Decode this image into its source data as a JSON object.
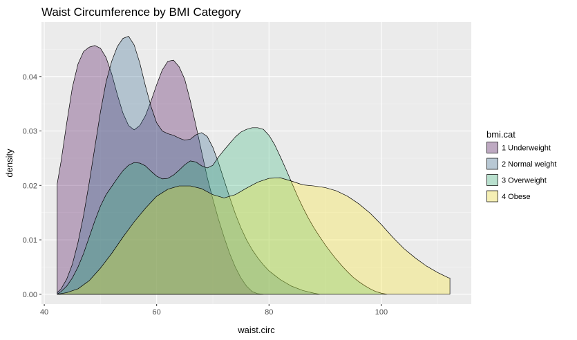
{
  "chart_data": {
    "type": "area",
    "title": "Waist Circumference by BMI Category",
    "xlabel": "waist.circ",
    "ylabel": "density",
    "xlim": [
      39.5,
      116
    ],
    "ylim": [
      -0.0018,
      0.05
    ],
    "xticks": [
      40,
      60,
      80,
      100
    ],
    "yticks": [
      0.0,
      0.01,
      0.02,
      0.03,
      0.04
    ],
    "ytick_labels": [
      "0.00",
      "0.01",
      "0.02",
      "0.03",
      "0.04"
    ],
    "grid": true,
    "legend_title": "bmi.cat",
    "legend_position": "right",
    "series": [
      {
        "name": "1 Underweight",
        "color": "#440154",
        "points": [
          [
            42.3,
            0.0203
          ],
          [
            43,
            0.0245
          ],
          [
            44,
            0.0315
          ],
          [
            45,
            0.038
          ],
          [
            46,
            0.0423
          ],
          [
            47,
            0.0446
          ],
          [
            48,
            0.0454
          ],
          [
            49,
            0.0457
          ],
          [
            50,
            0.0452
          ],
          [
            51,
            0.0435
          ],
          [
            52,
            0.0405
          ],
          [
            53,
            0.0367
          ],
          [
            54,
            0.0333
          ],
          [
            55,
            0.031
          ],
          [
            56,
            0.0302
          ],
          [
            57,
            0.031
          ],
          [
            58,
            0.0328
          ],
          [
            59,
            0.0355
          ],
          [
            60,
            0.0385
          ],
          [
            61,
            0.0412
          ],
          [
            62,
            0.0428
          ],
          [
            63,
            0.043
          ],
          [
            64,
            0.0418
          ],
          [
            65,
            0.0395
          ],
          [
            66,
            0.0355
          ],
          [
            67,
            0.031
          ],
          [
            68,
            0.0262
          ],
          [
            69,
            0.0215
          ],
          [
            70,
            0.0175
          ],
          [
            71,
            0.0138
          ],
          [
            72,
            0.0105
          ],
          [
            73,
            0.0075
          ],
          [
            74,
            0.005
          ],
          [
            75,
            0.003
          ],
          [
            76,
            0.0015
          ],
          [
            77,
            0.0005
          ],
          [
            78,
            0.0001
          ],
          [
            79,
            0.0
          ]
        ]
      },
      {
        "name": "2 Normal weight",
        "color": "#31688E",
        "points": [
          [
            42.3,
            0.0003
          ],
          [
            43,
            0.001
          ],
          [
            44,
            0.0028
          ],
          [
            45,
            0.0055
          ],
          [
            46,
            0.0095
          ],
          [
            47,
            0.0145
          ],
          [
            48,
            0.0205
          ],
          [
            49,
            0.027
          ],
          [
            50,
            0.0335
          ],
          [
            51,
            0.039
          ],
          [
            52,
            0.0428
          ],
          [
            53,
            0.0455
          ],
          [
            54,
            0.047
          ],
          [
            55,
            0.0474
          ],
          [
            56,
            0.0458
          ],
          [
            57,
            0.0425
          ],
          [
            58,
            0.0383
          ],
          [
            59,
            0.0345
          ],
          [
            60,
            0.0315
          ],
          [
            61,
            0.03
          ],
          [
            62,
            0.0295
          ],
          [
            63,
            0.0292
          ],
          [
            64,
            0.0287
          ],
          [
            65,
            0.0283
          ],
          [
            66,
            0.0285
          ],
          [
            67,
            0.0293
          ],
          [
            68,
            0.0297
          ],
          [
            69,
            0.029
          ],
          [
            70,
            0.027
          ],
          [
            71,
            0.0242
          ],
          [
            72,
            0.021
          ],
          [
            73,
            0.0178
          ],
          [
            74,
            0.0148
          ],
          [
            75,
            0.0122
          ],
          [
            76,
            0.01
          ],
          [
            77,
            0.0082
          ],
          [
            78,
            0.0067
          ],
          [
            79,
            0.0054
          ],
          [
            80,
            0.0043
          ],
          [
            82,
            0.0027
          ],
          [
            84,
            0.0015
          ],
          [
            86,
            0.0007
          ],
          [
            88,
            0.0002
          ],
          [
            89,
            0.0
          ]
        ]
      },
      {
        "name": "3 Overweight",
        "color": "#35B779",
        "points": [
          [
            42.3,
            0.0
          ],
          [
            43,
            0.0005
          ],
          [
            44,
            0.0015
          ],
          [
            45,
            0.003
          ],
          [
            46,
            0.005
          ],
          [
            47,
            0.0075
          ],
          [
            48,
            0.0105
          ],
          [
            49,
            0.0135
          ],
          [
            50,
            0.0162
          ],
          [
            51,
            0.0183
          ],
          [
            52,
            0.0198
          ],
          [
            53,
            0.0213
          ],
          [
            54,
            0.0227
          ],
          [
            55,
            0.0237
          ],
          [
            56,
            0.0242
          ],
          [
            57,
            0.0241
          ],
          [
            58,
            0.0236
          ],
          [
            59,
            0.0226
          ],
          [
            60,
            0.0217
          ],
          [
            61,
            0.0212
          ],
          [
            62,
            0.0213
          ],
          [
            63,
            0.0219
          ],
          [
            64,
            0.0228
          ],
          [
            65,
            0.0238
          ],
          [
            66,
            0.0245
          ],
          [
            67,
            0.0243
          ],
          [
            68,
            0.0236
          ],
          [
            69,
            0.0232
          ],
          [
            70,
            0.0237
          ],
          [
            71,
            0.0252
          ],
          [
            72,
            0.0265
          ],
          [
            73,
            0.0277
          ],
          [
            74,
            0.0289
          ],
          [
            75,
            0.0298
          ],
          [
            76,
            0.0303
          ],
          [
            77,
            0.0306
          ],
          [
            78,
            0.0306
          ],
          [
            79,
            0.0303
          ],
          [
            80,
            0.0292
          ],
          [
            81,
            0.0275
          ],
          [
            82,
            0.0253
          ],
          [
            83,
            0.023
          ],
          [
            84,
            0.0206
          ],
          [
            85,
            0.0182
          ],
          [
            86,
            0.016
          ],
          [
            87,
            0.014
          ],
          [
            88,
            0.0122
          ],
          [
            89,
            0.0106
          ],
          [
            90,
            0.0091
          ],
          [
            91,
            0.0077
          ],
          [
            92,
            0.0064
          ],
          [
            93,
            0.0052
          ],
          [
            94,
            0.0041
          ],
          [
            95,
            0.0031
          ],
          [
            96,
            0.0023
          ],
          [
            97,
            0.0016
          ],
          [
            98,
            0.001
          ],
          [
            99,
            0.0005
          ],
          [
            100,
            0.0002
          ],
          [
            101,
            0.0
          ]
        ]
      },
      {
        "name": "4 Obese",
        "color": "#FDE725",
        "points": [
          [
            42.3,
            0.0
          ],
          [
            44,
            0.0003
          ],
          [
            46,
            0.001
          ],
          [
            48,
            0.0025
          ],
          [
            50,
            0.0048
          ],
          [
            52,
            0.0075
          ],
          [
            54,
            0.0105
          ],
          [
            56,
            0.0133
          ],
          [
            58,
            0.0158
          ],
          [
            60,
            0.018
          ],
          [
            62,
            0.0193
          ],
          [
            64,
            0.0199
          ],
          [
            66,
            0.0199
          ],
          [
            68,
            0.0194
          ],
          [
            70,
            0.0183
          ],
          [
            72,
            0.0177
          ],
          [
            74,
            0.0183
          ],
          [
            76,
            0.0195
          ],
          [
            78,
            0.0206
          ],
          [
            80,
            0.0213
          ],
          [
            82,
            0.0214
          ],
          [
            84,
            0.0208
          ],
          [
            86,
            0.0201
          ],
          [
            88,
            0.0199
          ],
          [
            90,
            0.0196
          ],
          [
            92,
            0.019
          ],
          [
            94,
            0.018
          ],
          [
            96,
            0.0166
          ],
          [
            98,
            0.0149
          ],
          [
            100,
            0.0128
          ],
          [
            102,
            0.0105
          ],
          [
            104,
            0.0084
          ],
          [
            106,
            0.0067
          ],
          [
            108,
            0.0052
          ],
          [
            110,
            0.004
          ],
          [
            112,
            0.003
          ],
          [
            112.2,
            0.003
          ],
          [
            112.2,
            0.0
          ]
        ]
      }
    ]
  }
}
